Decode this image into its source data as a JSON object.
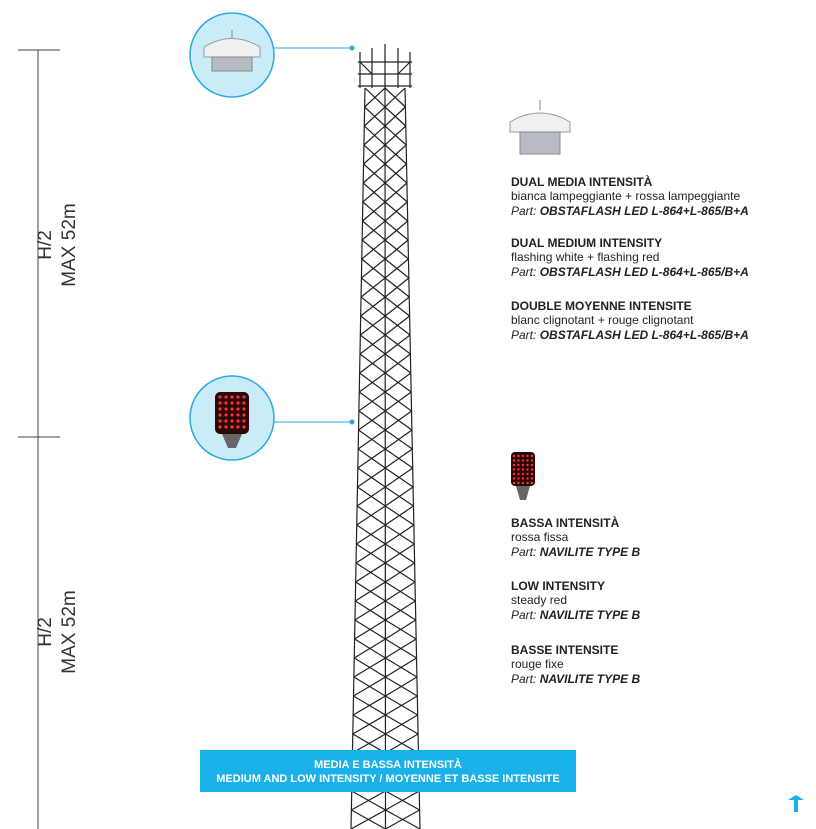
{
  "scale": [
    {
      "label": "H/2",
      "max": "MAX 52m"
    },
    {
      "label": "H/2",
      "max": "MAX 52m"
    }
  ],
  "products": [
    {
      "entries": [
        {
          "heading": "DUAL MEDIA INTENSITÀ",
          "description": "bianca lampeggiante + rossa lampeggiante",
          "part_label": "Part:",
          "part": "OBSTAFLASH LED L-864+L-865/B+A"
        },
        {
          "heading": "DUAL MEDIUM INTENSITY",
          "description": "flashing white + flashing red",
          "part_label": "Part:",
          "part": "OBSTAFLASH LED L-864+L-865/B+A"
        },
        {
          "heading": "DOUBLE MOYENNE INTENSITE",
          "description": "blanc clignotant + rouge clignotant",
          "part_label": "Part:",
          "part": "OBSTAFLASH LED L-864+L-865/B+A"
        }
      ]
    },
    {
      "entries": [
        {
          "heading": "BASSA INTENSITÀ",
          "description": "rossa fissa",
          "part_label": "Part:",
          "part": "NAVILITE TYPE B"
        },
        {
          "heading": "LOW INTENSITY",
          "description": "steady red",
          "part_label": "Part:",
          "part": "NAVILITE TYPE B"
        },
        {
          "heading": "BASSE INTENSITE",
          "description": "rouge fixe",
          "part_label": "Part:",
          "part": "NAVILITE TYPE B"
        }
      ]
    }
  ],
  "banner": {
    "line1": "MEDIA E BASSA INTENSITÀ",
    "line2": "MEDIUM AND LOW INTENSITY / MOYENNE ET BASSE INTENSITE"
  }
}
